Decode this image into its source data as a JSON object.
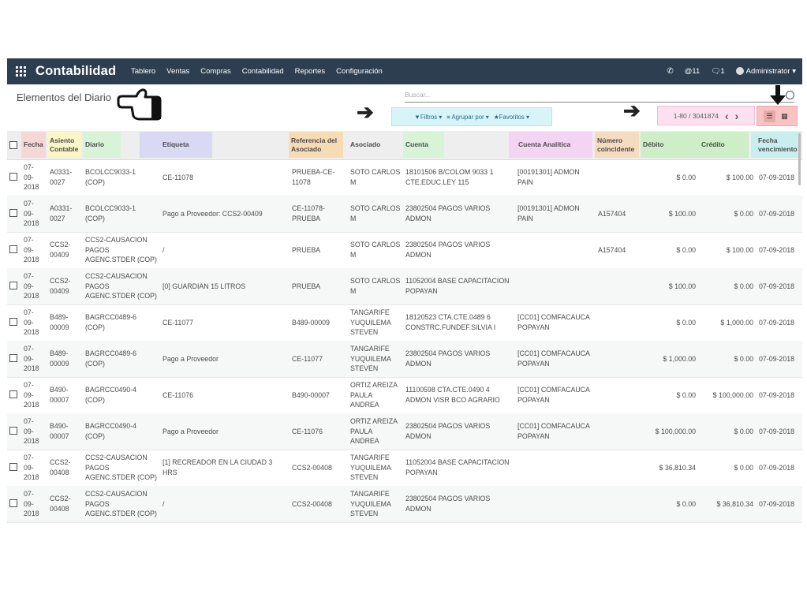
{
  "navbar": {
    "brand": "Contabilidad",
    "menu": [
      "Tablero",
      "Ventas",
      "Compras",
      "Contabilidad",
      "Reportes",
      "Configuración"
    ],
    "phone_icon": "phone-icon",
    "mentions": "@11",
    "messages": "1",
    "user": "Administrator ▾"
  },
  "control": {
    "title": "Elementos del Diario",
    "search_placeholder": "Buscar...",
    "filters": "Filtros ▾",
    "group_by": "Agrupar por ▾",
    "favorites": "Favoritos ▾",
    "pager": "1-80 / 3041874",
    "pager_prev": "‹",
    "pager_next": "›"
  },
  "table": {
    "headers": {
      "fecha": "Fecha",
      "asiento": "Asiento\nContable",
      "diario": "Diario",
      "etiqueta": "Etiqueta",
      "referencia": "Referencia del\nAsociado",
      "asociado": "Asociado",
      "cuenta": "Cuenta",
      "analitica": "Cuenta Analítica",
      "numero": "Número\ncoincidente",
      "debito": "Débito",
      "credito": "Crédito",
      "vencimiento": "Fecha\nvencimiento"
    },
    "header_colors": {
      "fecha": "#f6d7d7",
      "asiento": "#fbf6c8",
      "diario": "#d8f3d8",
      "etiqueta": "#d9d9f3",
      "referencia": "#f6dbb4",
      "asociado": "#e5e5e5",
      "cuenta": "#d7f3d8",
      "analitica": "#f3d5f3",
      "numero": "#f5dbc0",
      "debcred": "#cdeec6",
      "vencimiento": "#c8eeee"
    },
    "rows": [
      {
        "fecha": "07-\n09-\n2018",
        "asiento": "A0331-\n0027",
        "diario": "BCOLCC9033-1\n(COP)",
        "etiqueta": "CE-11078",
        "referencia": "PRUEBA-CE-\n11078",
        "asociado": "SOTO CARLOS\nM",
        "cuenta": "18101506 B/COLOM 9033 1\nCTE.EDUC.LEY 115",
        "analitica": "[00191301] ADMON\nPAIN",
        "numero": "",
        "debito": "$ 0.00",
        "credito": "$ 100.00",
        "vencimiento": "07-09-2018"
      },
      {
        "fecha": "07-\n09-\n2018",
        "asiento": "A0331-\n0027",
        "diario": "BCOLCC9033-1\n(COP)",
        "etiqueta": "Pago a Proveedor: CCS2-00409",
        "referencia": "CE-11078-\nPRUEBA",
        "asociado": "SOTO CARLOS\nM",
        "cuenta": "23802504 PAGOS VARIOS\nADMON",
        "analitica": "[00191301] ADMON\nPAIN",
        "numero": "A157404",
        "debito": "$ 100.00",
        "credito": "$ 0.00",
        "vencimiento": "07-09-2018"
      },
      {
        "fecha": "07-\n09-\n2018",
        "asiento": "CCS2-\n00409",
        "diario": "CCS2-CAUSACION\nPAGOS\nAGENC.STDER (COP)",
        "etiqueta": "/",
        "referencia": "PRUEBA",
        "asociado": "SOTO CARLOS\nM",
        "cuenta": "23802504 PAGOS VARIOS\nADMON",
        "analitica": "",
        "numero": "A157404",
        "debito": "$ 0.00",
        "credito": "$ 100.00",
        "vencimiento": "07-09-2018"
      },
      {
        "fecha": "07-\n09-\n2018",
        "asiento": "CCS2-\n00409",
        "diario": "CCS2-CAUSACION\nPAGOS\nAGENC.STDER (COP)",
        "etiqueta": "[0] GUARDIAN 15 LITROS",
        "referencia": "PRUEBA",
        "asociado": "SOTO CARLOS\nM",
        "cuenta": "11052004 BASE CAPACITACION\nPOPAYAN",
        "analitica": "",
        "numero": "",
        "debito": "$ 100.00",
        "credito": "$ 0.00",
        "vencimiento": "07-09-2018"
      },
      {
        "fecha": "07-\n09-\n2018",
        "asiento": "B489-\n00009",
        "diario": "BAGRCC0489-6\n(COP)",
        "etiqueta": "CE-11077",
        "referencia": "B489-00009",
        "asociado": "TANGARIFE\nYUQUILEMA\nSTEVEN",
        "cuenta": "18120523 CTA.CTE.0489 6\nCONSTRC.FUNDEF.SILVIA I",
        "analitica": "[CC01] COMFACAUCA\nPOPAYAN",
        "numero": "",
        "debito": "$ 0.00",
        "credito": "$ 1,000.00",
        "vencimiento": "07-09-2018"
      },
      {
        "fecha": "07-\n09-\n2018",
        "asiento": "B489-\n00009",
        "diario": "BAGRCC0489-6\n(COP)",
        "etiqueta": "Pago a Proveedor",
        "referencia": "CE-11077",
        "asociado": "TANGARIFE\nYUQUILEMA\nSTEVEN",
        "cuenta": "23802504 PAGOS VARIOS\nADMON",
        "analitica": "[CC01] COMFACAUCA\nPOPAYAN",
        "numero": "",
        "debito": "$ 1,000.00",
        "credito": "$ 0.00",
        "vencimiento": "07-09-2018"
      },
      {
        "fecha": "07-\n09-\n2018",
        "asiento": "B490-\n00007",
        "diario": "BAGRCC0490-4\n(COP)",
        "etiqueta": "CE-11076",
        "referencia": "B490-00007",
        "asociado": "ORTIZ AREIZA\nPAULA\nANDREA",
        "cuenta": "11100598 CTA.CTE.0490 4\nADMON VISR BCO AGRARIO",
        "analitica": "[CC01] COMFACAUCA\nPOPAYAN",
        "numero": "",
        "debito": "$ 0.00",
        "credito": "$ 100,000.00",
        "vencimiento": "07-09-2018"
      },
      {
        "fecha": "07-\n09-\n2018",
        "asiento": "B490-\n00007",
        "diario": "BAGRCC0490-4\n(COP)",
        "etiqueta": "Pago a Proveedor",
        "referencia": "CE-11076",
        "asociado": "ORTIZ AREIZA\nPAULA\nANDREA",
        "cuenta": "23802504 PAGOS VARIOS\nADMON",
        "analitica": "[CC01] COMFACAUCA\nPOPAYAN",
        "numero": "",
        "debito": "$ 100,000.00",
        "credito": "$ 0.00",
        "vencimiento": "07-09-2018"
      },
      {
        "fecha": "07-\n09-\n2018",
        "asiento": "CCS2-\n00408",
        "diario": "CCS2-CAUSACION\nPAGOS\nAGENC.STDER (COP)",
        "etiqueta": "[1] RECREADOR EN LA CIUDAD 3\nHRS",
        "referencia": "CCS2-00408",
        "asociado": "TANGARIFE\nYUQUILEMA\nSTEVEN",
        "cuenta": "11052004 BASE CAPACITACION\nPOPAYAN",
        "analitica": "",
        "numero": "",
        "debito": "$ 36,810.34",
        "credito": "$ 0.00",
        "vencimiento": "07-09-2018"
      },
      {
        "fecha": "07-\n09-\n2018",
        "asiento": "CCS2-\n00408",
        "diario": "CCS2-CAUSACION\nPAGOS\nAGENC.STDER (COP)",
        "etiqueta": "/",
        "referencia": "CCS2-00408",
        "asociado": "TANGARIFE\nYUQUILEMA\nSTEVEN",
        "cuenta": "23802504 PAGOS VARIOS\nADMON",
        "analitica": "",
        "numero": "",
        "debito": "$ 0.00",
        "credito": "$ 36,810.34",
        "vencimiento": "07-09-2018"
      }
    ]
  }
}
